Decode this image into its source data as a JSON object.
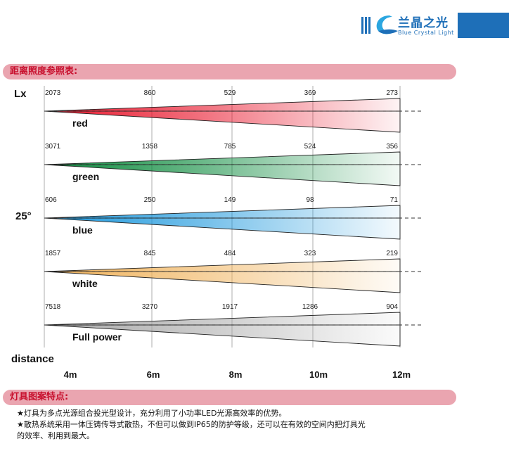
{
  "header": {
    "brand_cn": "兰晶之光",
    "brand_en": "Blue Crystal Light",
    "accent_color": "#1e6fb8"
  },
  "sections": {
    "illuminance_title": "距离照度参照表:",
    "features_title": "灯具图案特点:"
  },
  "chart_data": {
    "type": "table",
    "y_unit_label": "Lx",
    "beam_angle": "25°",
    "xlabel": "distance",
    "distances": [
      "4m",
      "6m",
      "8m",
      "10m",
      "12m"
    ],
    "rows": [
      {
        "name": "red",
        "color": "#e8142a",
        "values": [
          2073,
          860,
          529,
          369,
          273
        ]
      },
      {
        "name": "green",
        "color": "#0a8a3c",
        "values": [
          3071,
          1358,
          785,
          524,
          356
        ]
      },
      {
        "name": "blue",
        "color": "#1996dc",
        "values": [
          606,
          250,
          149,
          98,
          71
        ]
      },
      {
        "name": "white",
        "color": "#f0b25a",
        "values": [
          1857,
          845,
          484,
          323,
          219
        ]
      },
      {
        "name": "Full power",
        "color": "#a9a9a9",
        "values": [
          7518,
          3270,
          1917,
          1286,
          904
        ]
      }
    ]
  },
  "features": [
    "★灯具为多点光源组合投光型设计，充分利用了小功率LED光源高效率的优势。",
    "★散热系统采用一体压铸传导式散热，不但可以做到IP65的防护等级，还可以在有效的空间内把灯具光",
    "的效率、利用到最大。"
  ]
}
